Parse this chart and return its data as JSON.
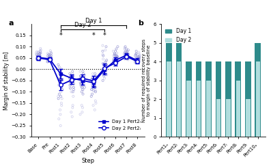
{
  "panel_a": {
    "steps": [
      "Base",
      "Pre",
      "Post1",
      "Post2",
      "Post3",
      "Post4",
      "Post5",
      "Post6",
      "Post7",
      "Post8"
    ],
    "day1_mean": [
      0.052,
      0.046,
      -0.02,
      -0.04,
      -0.05,
      -0.06,
      -0.002,
      0.04,
      0.062,
      0.038
    ],
    "day1_err": [
      0.008,
      0.007,
      0.022,
      0.018,
      0.018,
      0.02,
      0.02,
      0.012,
      0.008,
      0.01
    ],
    "day2_mean": [
      0.05,
      0.042,
      -0.07,
      -0.048,
      -0.04,
      -0.052,
      0.004,
      0.028,
      0.056,
      0.034
    ],
    "day2_err": [
      0.009,
      0.008,
      0.022,
      0.018,
      0.018,
      0.022,
      0.02,
      0.012,
      0.009,
      0.01
    ],
    "day1_scatter_y": [
      [
        0.06,
        0.055,
        0.048,
        0.07,
        0.065,
        0.05,
        0.04,
        0.058,
        0.045,
        0.052,
        0.062,
        0.072,
        0.068,
        0.08,
        0.075
      ],
      [
        0.05,
        0.042,
        0.038,
        0.055,
        0.06,
        0.04,
        0.033,
        0.05,
        0.045,
        0.042,
        0.052,
        0.06,
        0.056,
        0.065,
        0.07
      ],
      [
        0.0,
        -0.01,
        -0.03,
        -0.05,
        -0.08,
        -0.12,
        -0.07,
        -0.02,
        0.02,
        -0.04,
        0.01,
        -0.06,
        -0.09,
        -0.11,
        -0.13
      ],
      [
        -0.02,
        -0.03,
        -0.045,
        -0.06,
        -0.07,
        -0.05,
        -0.03,
        -0.04,
        -0.055,
        -0.065,
        -0.08,
        -0.01,
        -0.085,
        -0.09,
        -0.1
      ],
      [
        -0.01,
        -0.02,
        -0.03,
        -0.055,
        -0.06,
        -0.07,
        -0.08,
        -0.04,
        -0.03,
        -0.05,
        -0.065,
        -0.08,
        -0.09,
        -0.1,
        -0.11
      ],
      [
        -0.02,
        -0.03,
        -0.055,
        -0.07,
        -0.09,
        -0.065,
        -0.04,
        -0.055,
        -0.07,
        -0.08,
        -0.045,
        -0.1,
        -0.11,
        -0.12,
        -0.095
      ],
      [
        0.02,
        0.01,
        -0.01,
        -0.02,
        0.005,
        0.03,
        -0.03,
        0.0,
        0.02,
        -0.01,
        0.04,
        0.06,
        0.08,
        0.1,
        -0.05
      ],
      [
        0.055,
        0.048,
        0.038,
        0.05,
        0.06,
        0.04,
        0.035,
        0.042,
        0.055,
        0.06,
        0.07,
        0.08,
        0.09,
        0.1,
        0.065
      ],
      [
        0.065,
        0.058,
        0.055,
        0.07,
        0.075,
        0.05,
        0.045,
        0.06,
        0.065,
        0.072,
        0.08,
        0.085,
        0.09,
        0.1,
        0.075
      ],
      [
        0.045,
        0.038,
        0.032,
        0.04,
        0.055,
        0.035,
        0.03,
        0.042,
        0.048,
        0.055,
        0.06,
        0.065,
        0.07,
        0.08,
        0.055
      ]
    ],
    "day2_scatter_y": [
      [
        0.06,
        0.055,
        0.048,
        0.07,
        0.065,
        0.05,
        0.04,
        0.085,
        0.092,
        0.045,
        0.052,
        0.062,
        0.072,
        0.078,
        0.068
      ],
      [
        0.05,
        0.042,
        0.038,
        0.055,
        0.06,
        0.04,
        0.033,
        0.075,
        0.082,
        0.042,
        0.052,
        0.06,
        0.065,
        0.07,
        0.058
      ],
      [
        -0.04,
        -0.06,
        -0.08,
        -0.1,
        -0.13,
        -0.15,
        -0.18,
        -0.09,
        -0.05,
        -0.12,
        -0.07,
        -0.16,
        -0.2,
        -0.22,
        -0.25
      ],
      [
        -0.02,
        -0.04,
        -0.055,
        -0.07,
        -0.08,
        -0.1,
        -0.045,
        -0.055,
        -0.065,
        -0.08,
        -0.12,
        -0.16,
        -0.17,
        -0.19,
        -0.21
      ],
      [
        -0.01,
        -0.025,
        -0.04,
        -0.06,
        -0.07,
        -0.08,
        -0.09,
        -0.05,
        -0.035,
        -0.065,
        -0.075,
        -0.16,
        -0.17,
        -0.19,
        -0.2
      ],
      [
        -0.02,
        -0.035,
        -0.06,
        -0.075,
        -0.095,
        -0.07,
        -0.05,
        -0.065,
        -0.08,
        -0.09,
        -0.055,
        -0.16,
        -0.15,
        -0.14,
        -0.18
      ],
      [
        0.025,
        0.015,
        -0.005,
        -0.015,
        0.01,
        0.035,
        -0.025,
        0.005,
        0.025,
        -0.005,
        0.045,
        0.065,
        0.085,
        0.105,
        -0.04
      ],
      [
        0.04,
        0.035,
        0.028,
        0.04,
        0.048,
        0.03,
        0.025,
        0.035,
        0.045,
        0.05,
        0.058,
        0.065,
        0.072,
        0.08,
        0.06
      ],
      [
        0.06,
        0.052,
        0.048,
        0.065,
        0.068,
        0.045,
        0.042,
        0.055,
        0.06,
        0.068,
        0.075,
        0.08,
        0.088,
        0.095,
        0.07
      ],
      [
        0.042,
        0.035,
        0.028,
        0.038,
        0.05,
        0.032,
        0.028,
        0.038,
        0.045,
        0.052,
        0.058,
        0.062,
        0.068,
        0.075,
        0.055
      ]
    ],
    "ylabel": "Margin of stability [m]",
    "xlabel": "Step",
    "ylim": [
      -0.3,
      0.2
    ],
    "yticks": [
      -0.3,
      -0.25,
      -0.2,
      -0.15,
      -0.1,
      -0.05,
      0.0,
      0.05,
      0.1,
      0.15
    ],
    "day1_label": "Day 1 Pert2ₗ",
    "day2_label": "Day 2 Pert2ₗ",
    "line_color": "#0000CD",
    "scatter_color": "#8888CC",
    "significant_steps": [
      2,
      5,
      6
    ],
    "day1_bracket": [
      2,
      8
    ],
    "day2_bracket": [
      2,
      6
    ],
    "panel_label": "a"
  },
  "panel_b": {
    "perts": [
      "Pert1ₐ",
      "Pert2ₗ",
      "Pert3ₗ",
      "Pert4ₗ",
      "Pert5ₗ",
      "Pert6ₗ",
      "Pert7ₗ",
      "Pert8ₗ",
      "Pert9ₗ",
      "Pert10ₐ"
    ],
    "day1_values": [
      5,
      5,
      4,
      4,
      4,
      4,
      4,
      4,
      4,
      5
    ],
    "day2_values": [
      4,
      4,
      3,
      3,
      3,
      2,
      2,
      3,
      2,
      4
    ],
    "day1_color": "#2E8B8B",
    "day2_color": "#B0DEDE",
    "ylabel": "Number of required recovery steps\nto margin of stability baseline",
    "ylim": [
      0,
      6
    ],
    "yticks": [
      0,
      1,
      2,
      3,
      4,
      5,
      6
    ],
    "day1_label": "Day 1",
    "day2_label": "Day 2",
    "panel_label": "b"
  }
}
